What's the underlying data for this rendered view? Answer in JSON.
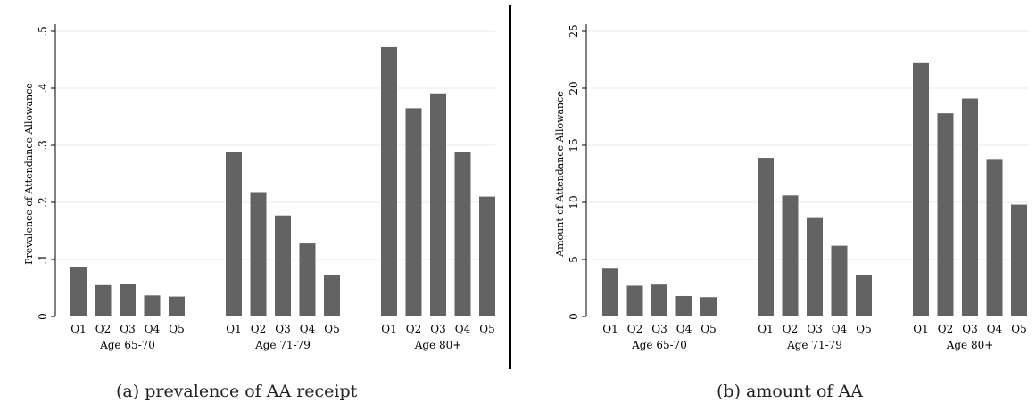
{
  "chart_data": [
    {
      "type": "bar",
      "ylabel": "Prevalence of Attendance Allowance",
      "ylim": [
        0,
        0.5
      ],
      "y_ticks": [
        0,
        0.1,
        0.2,
        0.3,
        0.4,
        0.5
      ],
      "y_tick_labels": [
        "0",
        ".1",
        ".2",
        ".3",
        ".4",
        ".5"
      ],
      "grid": true,
      "bar_color": "#636363",
      "groups": [
        {
          "label": "Age 65-70",
          "categories": [
            "Q1",
            "Q2",
            "Q3",
            "Q4",
            "Q5"
          ],
          "values": [
            0.086,
            0.055,
            0.057,
            0.037,
            0.035
          ]
        },
        {
          "label": "Age 71-79",
          "categories": [
            "Q1",
            "Q2",
            "Q3",
            "Q4",
            "Q5"
          ],
          "values": [
            0.288,
            0.218,
            0.177,
            0.128,
            0.073
          ]
        },
        {
          "label": "Age 80+",
          "categories": [
            "Q1",
            "Q2",
            "Q3",
            "Q4",
            "Q5"
          ],
          "values": [
            0.472,
            0.365,
            0.391,
            0.289,
            0.21
          ]
        }
      ],
      "caption": "(a) prevalence of AA receipt"
    },
    {
      "type": "bar",
      "ylabel": "Amount of Attendance Allowance",
      "ylim": [
        0,
        25
      ],
      "y_ticks": [
        0,
        5,
        10,
        15,
        20,
        25
      ],
      "y_tick_labels": [
        "0",
        "5",
        "10",
        "15",
        "20",
        "25"
      ],
      "grid": true,
      "bar_color": "#636363",
      "groups": [
        {
          "label": "Age 65-70",
          "categories": [
            "Q1",
            "Q2",
            "Q3",
            "Q4",
            "Q5"
          ],
          "values": [
            4.2,
            2.7,
            2.8,
            1.8,
            1.7
          ]
        },
        {
          "label": "Age 71-79",
          "categories": [
            "Q1",
            "Q2",
            "Q3",
            "Q4",
            "Q5"
          ],
          "values": [
            13.9,
            10.6,
            8.7,
            6.2,
            3.6
          ]
        },
        {
          "label": "Age 80+",
          "categories": [
            "Q1",
            "Q2",
            "Q3",
            "Q4",
            "Q5"
          ],
          "values": [
            22.2,
            17.8,
            19.1,
            13.8,
            9.8
          ]
        }
      ],
      "caption": "(b) amount of AA"
    }
  ]
}
